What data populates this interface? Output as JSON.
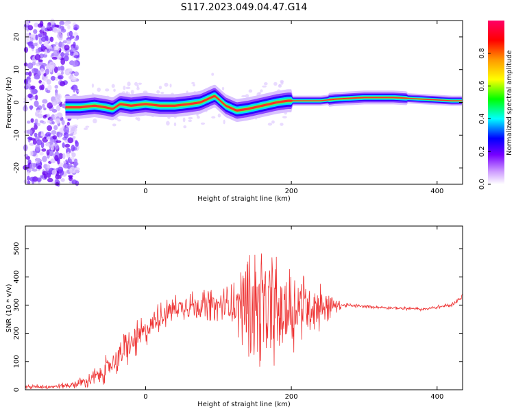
{
  "title": "S117.2023.049.04.47.G14",
  "chart_data": [
    {
      "type": "heatmap",
      "xlabel": "Height of straight line (km)",
      "ylabel": "Frequency (Hz)",
      "xlim": [
        -165,
        435
      ],
      "ylim": [
        -25,
        25
      ],
      "xticks": [
        0,
        200,
        400
      ],
      "yticks": [
        -20,
        -10,
        0,
        10,
        20
      ],
      "ridge_frequency_hz": {
        "x": [
          -110,
          -90,
          -70,
          -55,
          -45,
          -35,
          -20,
          0,
          20,
          40,
          60,
          75,
          85,
          95,
          110,
          125,
          140,
          160,
          180,
          195,
          210,
          240,
          260,
          300,
          340,
          380,
          420,
          435
        ],
        "y": [
          -1.5,
          -1.5,
          -1,
          -1.5,
          -2,
          -0.5,
          -1,
          -0.5,
          -1,
          -1,
          -0.5,
          0,
          1,
          2,
          -1,
          -2.5,
          -2,
          -1,
          0,
          0.5,
          0.5,
          0.5,
          1,
          1.5,
          1.5,
          1,
          0.5,
          0.5
        ]
      },
      "colorbar": {
        "label": "Normalized spectral amplitude",
        "ticks": [
          0.0,
          0.2,
          0.4,
          0.6,
          0.8
        ],
        "range": [
          0,
          1
        ],
        "colors": [
          "#ffffff",
          "#cc99ff",
          "#7700ff",
          "#0000ff",
          "#00ffff",
          "#00ff00",
          "#ffff00",
          "#ff9900",
          "#ff0000",
          "#ff0066"
        ]
      }
    },
    {
      "type": "line",
      "xlabel": "Height of straight line (km)",
      "ylabel": "SNR (10 * v/v)",
      "xlim": [
        -165,
        435
      ],
      "ylim": [
        0,
        580
      ],
      "xticks": [
        0,
        200,
        400
      ],
      "yticks": [
        0,
        100,
        200,
        300,
        400,
        500
      ],
      "color": "#ee3333",
      "envelope": {
        "x": [
          -165,
          -120,
          -100,
          -80,
          -60,
          -40,
          -20,
          0,
          20,
          40,
          60,
          80,
          100,
          120,
          140,
          160,
          180,
          200,
          220,
          240,
          255,
          270,
          300,
          340,
          380,
          420,
          435
        ],
        "mean": [
          10,
          12,
          18,
          30,
          60,
          110,
          160,
          210,
          260,
          290,
          300,
          300,
          300,
          300,
          300,
          290,
          280,
          280,
          300,
          300,
          300,
          300,
          295,
          290,
          285,
          300,
          330
        ],
        "spread": [
          8,
          10,
          15,
          25,
          45,
          65,
          70,
          60,
          55,
          50,
          50,
          55,
          60,
          80,
          190,
          220,
          200,
          160,
          110,
          100,
          50,
          8,
          6,
          6,
          6,
          8,
          10
        ]
      }
    }
  ]
}
